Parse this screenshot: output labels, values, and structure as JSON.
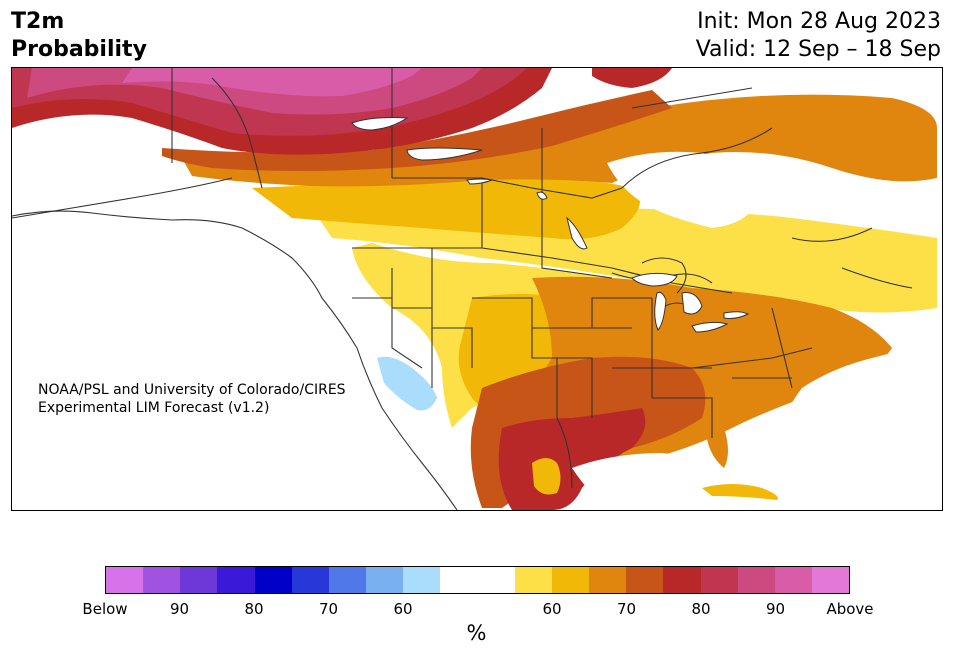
{
  "header": {
    "variable": "T2m",
    "kind": "Probability",
    "init": "Init: Mon 28 Aug 2023",
    "valid": "Valid: 12 Sep – 18 Sep"
  },
  "map": {
    "credit_line1": "NOAA/PSL and University of Colorado/CIRES",
    "credit_line2": "Experimental LIM Forecast (v1.2)"
  },
  "colorbar": {
    "colors": [
      "#d872e8",
      "#a053e0",
      "#6e38d8",
      "#3a1ad8",
      "#0000c8",
      "#2838d8",
      "#5078e8",
      "#78b0f0",
      "#aadcfb",
      "#ffffff",
      "#ffffff",
      "#fde047",
      "#f2b807",
      "#e0860e",
      "#c85518",
      "#b82828",
      "#c03650",
      "#cc4a80",
      "#d85ca8",
      "#e478d8"
    ],
    "labels": [
      "Below",
      "90",
      "80",
      "70",
      "60",
      "60",
      "70",
      "80",
      "90",
      "Above"
    ],
    "unit": "%"
  },
  "legend_colors": {
    "white": "#ffffff",
    "yellow": "#fde047",
    "gold": "#f2b807",
    "orange": "#e0860e",
    "dark_orange": "#c85518",
    "red": "#b82828",
    "crimson": "#c03650",
    "rose": "#cc4a80",
    "pink": "#d85ca8",
    "light_blue": "#aadcfb",
    "land_border": "#333333"
  }
}
